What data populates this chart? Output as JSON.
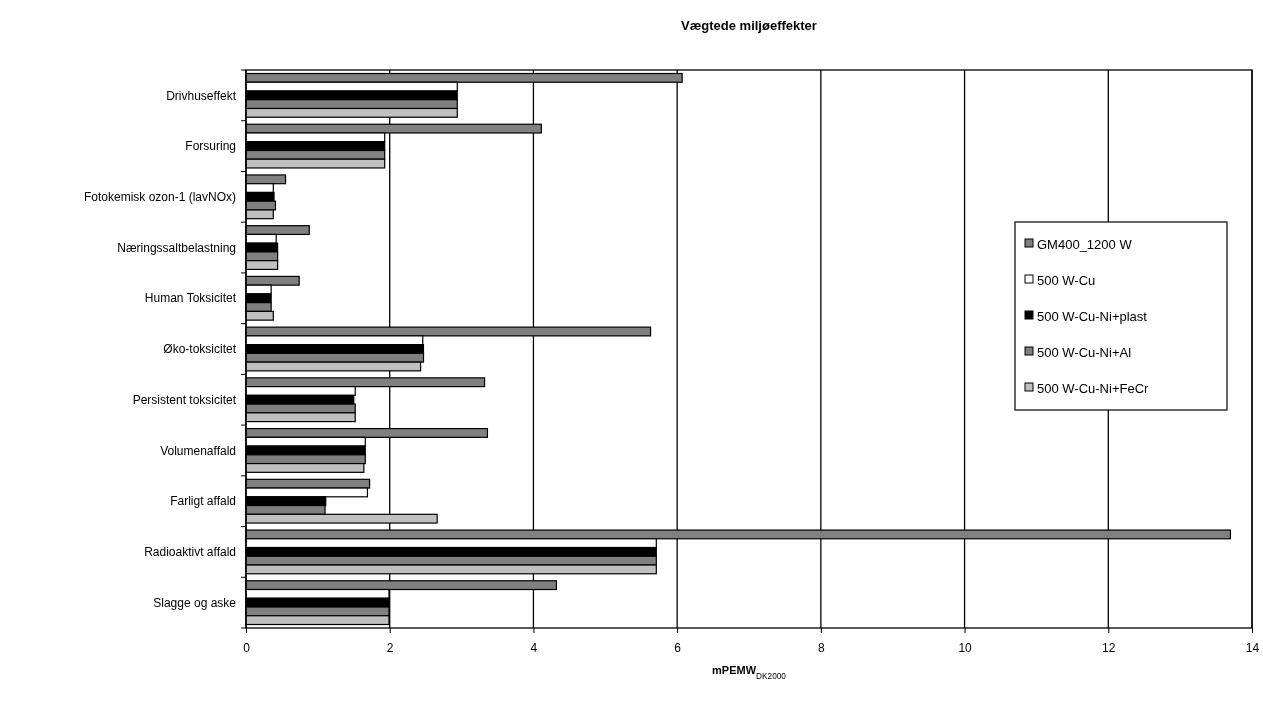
{
  "chart_data": {
    "type": "bar",
    "orientation": "horizontal",
    "title": "Vægtede miljøeffekter",
    "xlabel": "mPEMW$_{DK2000}$",
    "categories": [
      "Drivhuseffekt",
      "Forsuring",
      "Fotokemisk ozon-1 (lavNOx)",
      "Næringssaltbelastning",
      "Human Toksicitet",
      "Øko-toksicitet",
      "Persistent toksicitet",
      "Volumenaffald",
      "Farligt affald",
      "Radioaktivt affald",
      "Slagge og aske"
    ],
    "series": [
      {
        "name": "GM400_1200 W",
        "color": "#808080",
        "values": [
          6.07,
          4.11,
          0.55,
          0.88,
          0.74,
          5.63,
          3.32,
          3.36,
          1.72,
          13.7,
          4.32
        ]
      },
      {
        "name": "500 W-Cu",
        "color": "#ffffff",
        "values": [
          2.94,
          1.93,
          0.38,
          0.42,
          0.35,
          2.46,
          1.52,
          1.66,
          1.69,
          5.71,
          1.99
        ]
      },
      {
        "name": "500 W-Cu-Ni+plast",
        "color": "#000000",
        "values": [
          2.94,
          1.93,
          0.39,
          0.44,
          0.35,
          2.47,
          1.5,
          1.66,
          1.11,
          5.71,
          1.99
        ]
      },
      {
        "name": "500 W-Cu-Ni+Al",
        "color": "#808080",
        "values": [
          2.94,
          1.93,
          0.41,
          0.44,
          0.35,
          2.47,
          1.52,
          1.66,
          1.1,
          5.71,
          1.99
        ]
      },
      {
        "name": "500 W-Cu-Ni+FeCr",
        "color": "#c0c0c0",
        "values": [
          2.94,
          1.93,
          0.38,
          0.44,
          0.38,
          2.43,
          1.52,
          1.64,
          2.66,
          5.71,
          1.99
        ]
      }
    ],
    "xlim": [
      0,
      14
    ],
    "xticks": [
      0,
      2,
      4,
      6,
      8,
      10,
      12,
      14
    ],
    "grid": "x",
    "legend": "right"
  }
}
